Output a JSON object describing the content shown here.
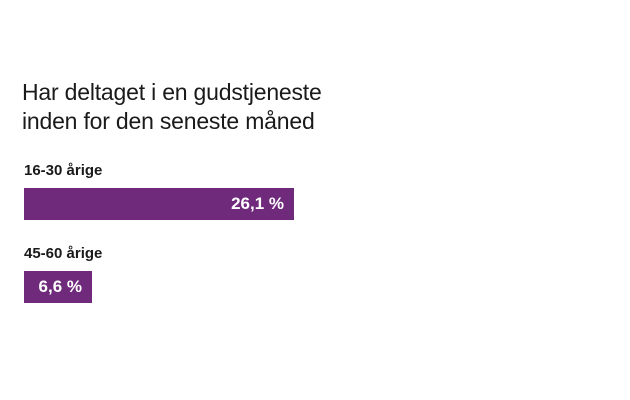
{
  "chart_data": {
    "type": "bar",
    "orientation": "horizontal",
    "title_lines": [
      "Har deltaget i en gudstjeneste",
      "inden for den seneste måned"
    ],
    "categories": [
      "16-30 årige",
      "45-60 årige"
    ],
    "values": [
      26.1,
      6.6
    ],
    "value_labels": [
      "26,1 %",
      "6,6 %"
    ],
    "unit": "%",
    "bar_color": "#6f2a7c",
    "grid": false,
    "legend": "none"
  }
}
